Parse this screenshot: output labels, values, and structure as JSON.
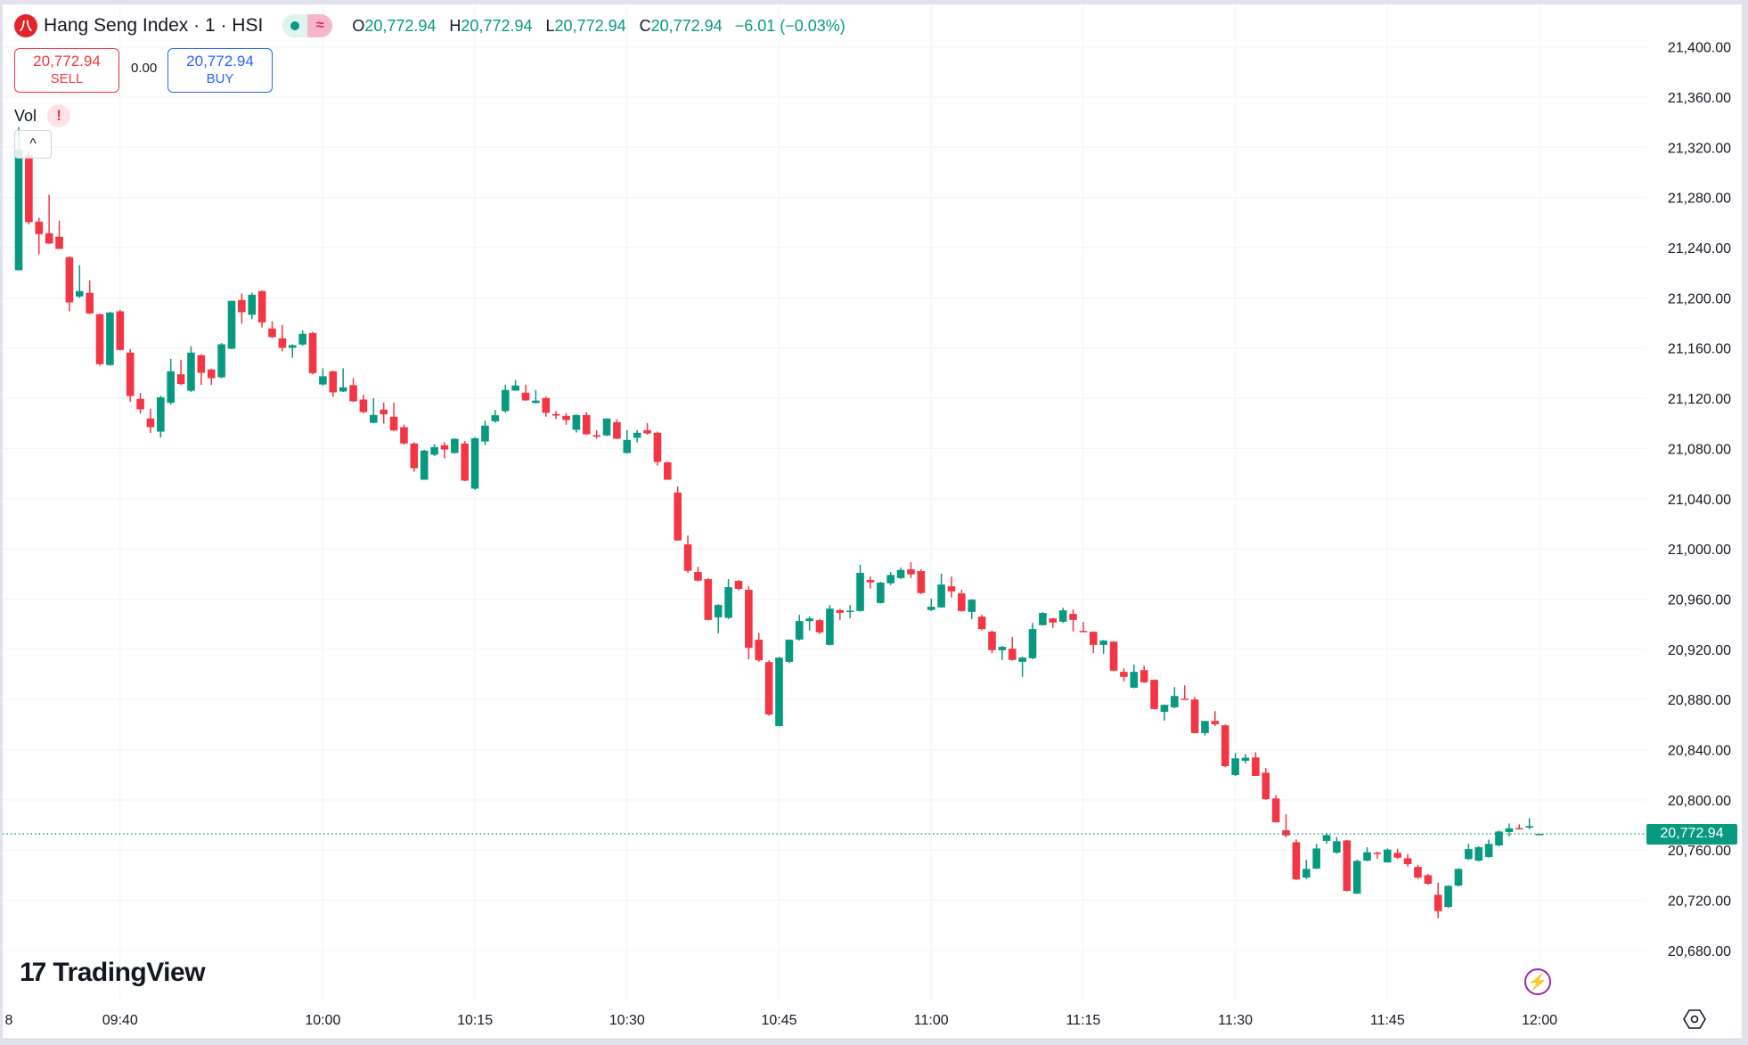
{
  "header": {
    "logo_text": "八",
    "title": "Hang Seng Index · 1 · HSI",
    "status_wave": "≈",
    "ohlc": {
      "o_label": "O",
      "o": "20,772.94",
      "h_label": "H",
      "h": "20,772.94",
      "l_label": "L",
      "l": "20,772.94",
      "c_label": "C",
      "c": "20,772.94",
      "change": "−6.01 (−0.03%)"
    }
  },
  "trade": {
    "sell_price": "20,772.94",
    "sell_label": "SELL",
    "spread": "0.00",
    "buy_price": "20,772.94",
    "buy_label": "BUY"
  },
  "indicator": {
    "name": "Vol",
    "warning": "!",
    "collapse": "^"
  },
  "branding": {
    "mark": "17",
    "name": "TradingView"
  },
  "icons": {
    "bolt": "⚡",
    "settings": "settings-hex-icon"
  },
  "colors": {
    "up": "#089981",
    "down": "#f23645",
    "buy": "#2962ff",
    "grid": "#f0f3fa"
  },
  "chart_data": {
    "type": "candlestick",
    "interval": "1 minute",
    "start_time": "09:30",
    "last_price": 20772.94,
    "last_price_label": "20,772.94",
    "ylim": [
      20660,
      21410
    ],
    "grid": true,
    "y_ticks": [
      "21,400.00",
      "21,360.00",
      "21,320.00",
      "21,280.00",
      "21,240.00",
      "21,200.00",
      "21,160.00",
      "21,120.00",
      "21,080.00",
      "21,040.00",
      "21,000.00",
      "20,960.00",
      "20,920.00",
      "20,880.00",
      "20,840.00",
      "20,800.00",
      "20,760.00",
      "20,720.00",
      "20,680.00"
    ],
    "x_ticks": [
      {
        "label": "8",
        "time": "09:29"
      },
      {
        "label": "09:40",
        "time": "09:40"
      },
      {
        "label": "10:00",
        "time": "10:00"
      },
      {
        "label": "10:15",
        "time": "10:15"
      },
      {
        "label": "10:30",
        "time": "10:30"
      },
      {
        "label": "10:45",
        "time": "10:45"
      },
      {
        "label": "11:00",
        "time": "11:00"
      },
      {
        "label": "11:15",
        "time": "11:15"
      },
      {
        "label": "11:30",
        "time": "11:30"
      },
      {
        "label": "11:45",
        "time": "11:45"
      },
      {
        "label": "12:00",
        "time": "12:00"
      }
    ],
    "ohlc_fields": [
      "open",
      "high",
      "low",
      "close"
    ],
    "candles": [
      [
        21222,
        21336,
        21222,
        21318.3
      ],
      [
        21314,
        21316.4,
        21258.6,
        21260.3
      ],
      [
        21260.8,
        21263.9,
        21234.7,
        21250.8
      ],
      [
        21251.5,
        21282.1,
        21243,
        21243.3
      ],
      [
        21248.7,
        21261.5,
        21239,
        21239
      ],
      [
        21232.4,
        21233,
        21189.3,
        21196.4
      ],
      [
        21201.1,
        21226,
        21200,
        21205.4
      ],
      [
        21204,
        21214,
        21187,
        21187.6
      ],
      [
        21187,
        21187.5,
        21146,
        21147.2
      ],
      [
        21146.5,
        21189,
        21146,
        21188.3
      ],
      [
        21189.3,
        21190.5,
        21158,
        21158.5
      ],
      [
        21156.4,
        21159.2,
        21117.1,
        21121.8
      ],
      [
        21119.5,
        21124.2,
        21107.6,
        21111.2
      ],
      [
        21103.9,
        21111.7,
        21092.3,
        21097
      ],
      [
        21093.4,
        21122,
        21088.7,
        21120.7
      ],
      [
        21116.4,
        21151.4,
        21115,
        21141.5
      ],
      [
        21139.1,
        21150.7,
        21130.6,
        21131.3
      ],
      [
        21126,
        21161.4,
        21125,
        21156.4
      ],
      [
        21154.3,
        21155,
        21130.6,
        21140.3
      ],
      [
        21142.9,
        21143.6,
        21130.6,
        21136
      ],
      [
        21136.7,
        21164,
        21136,
        21163
      ],
      [
        21159.5,
        21198,
        21159,
        21197.6
      ],
      [
        21198.3,
        21203.5,
        21179.4,
        21188.6
      ],
      [
        21186.5,
        21204,
        21183,
        21202.5
      ],
      [
        21205.4,
        21206,
        21176.3,
        21180.5
      ],
      [
        21175.6,
        21181.3,
        21168,
        21168.7
      ],
      [
        21167.8,
        21178.4,
        21157.4,
        21160.2
      ],
      [
        21160.2,
        21163,
        21152.2,
        21162.3
      ],
      [
        21162.8,
        21174.1,
        21162,
        21171.3
      ],
      [
        21172,
        21173,
        21139,
        21140
      ],
      [
        21131,
        21143.9,
        21130,
        21137.5
      ],
      [
        21141.5,
        21142,
        21121.1,
        21124.7
      ],
      [
        21125.4,
        21143.9,
        21125,
        21128.7
      ],
      [
        21130.4,
        21136,
        21117,
        21117.6
      ],
      [
        21119,
        21122.8,
        21108,
        21109
      ],
      [
        21100.5,
        21120,
        21100,
        21106.7
      ],
      [
        21111,
        21116.6,
        21099.8,
        21107.2
      ],
      [
        21105.3,
        21116.6,
        21094,
        21094.4
      ],
      [
        21097,
        21099,
        21083,
        21084
      ],
      [
        21084,
        21085,
        21061.5,
        21064.3
      ],
      [
        21055.1,
        21079,
        21055,
        21078.3
      ],
      [
        21075,
        21083.3,
        21074,
        21081.1
      ],
      [
        21082.6,
        21085,
        21072.1,
        21079.2
      ],
      [
        21076.4,
        21088.2,
        21076,
        21087.7
      ],
      [
        21084,
        21085.9,
        21054,
        21054.4
      ],
      [
        21048,
        21089,
        21047,
        21088.2
      ],
      [
        21085.6,
        21102.2,
        21082.8,
        21098.2
      ],
      [
        21101.7,
        21110.7,
        21100.5,
        21106.5
      ],
      [
        21109.8,
        21130.9,
        21108.4,
        21126.6
      ],
      [
        21126.1,
        21134.5,
        21126,
        21130.2
      ],
      [
        21124.5,
        21130.9,
        21118,
        21118.3
      ],
      [
        21116.2,
        21126.6,
        21116,
        21118.1
      ],
      [
        21120.2,
        21121.4,
        21105.3,
        21108.4
      ],
      [
        21107.4,
        21109.8,
        21103.4,
        21106.2
      ],
      [
        21106,
        21108.1,
        21098.9,
        21102.7
      ],
      [
        21094.9,
        21107,
        21092.7,
        21106.7
      ],
      [
        21106.7,
        21108.9,
        21091,
        21091.3
      ],
      [
        21090.6,
        21094.6,
        21087.8,
        21089.4
      ],
      [
        21090.4,
        21104,
        21089.9,
        21103.9
      ],
      [
        21101,
        21103.4,
        21087.5,
        21087.8
      ],
      [
        21076.4,
        21094.6,
        21076,
        21086.8
      ],
      [
        21088.5,
        21094.6,
        21084.9,
        21092.5
      ],
      [
        21094.6,
        21100.3,
        21091,
        21092
      ],
      [
        21092.5,
        21093.5,
        21066.4,
        21069.3
      ],
      [
        21069,
        21069.3,
        21055,
        21055.1
      ],
      [
        21044.9,
        21049.8,
        21006.5,
        21006.7
      ],
      [
        21003.6,
        21010.7,
        20981,
        20982.5
      ],
      [
        20981.6,
        20985.8,
        20974,
        20974.7
      ],
      [
        20975.9,
        20976.8,
        20943,
        20943.4
      ],
      [
        20945.5,
        20956,
        20932.8,
        20955.3
      ],
      [
        20945.1,
        20975.9,
        20944.1,
        20969.5
      ],
      [
        20974.5,
        20975.2,
        20967,
        20968.1
      ],
      [
        20967.4,
        20970.2,
        20912,
        20921.1
      ],
      [
        20927.6,
        20933,
        20910,
        20911.2
      ],
      [
        20909.8,
        20911.2,
        20867,
        20868
      ],
      [
        20858.8,
        20914,
        20858.5,
        20913.3
      ],
      [
        20910,
        20928,
        20909,
        20927.6
      ],
      [
        20927.8,
        20947.4,
        20927,
        20942.5
      ],
      [
        20942.5,
        20946,
        20934.9,
        20944.6
      ],
      [
        20943.2,
        20944.1,
        20932,
        20933.5
      ],
      [
        20923.5,
        20955.3,
        20923,
        20952.4
      ],
      [
        20951.2,
        20952,
        20943.4,
        20949.1
      ],
      [
        20950.5,
        20955.3,
        20944.8,
        20950.8
      ],
      [
        20950.5,
        20987.3,
        20950,
        20980.9
      ],
      [
        20975.2,
        20978,
        20968.3,
        20973.3
      ],
      [
        20956.9,
        20973.8,
        20956.5,
        20973.1
      ],
      [
        20972.6,
        20981.6,
        20971.2,
        20979.2
      ],
      [
        20976.8,
        20985.1,
        20976,
        20983.2
      ],
      [
        20983.7,
        20989.4,
        20976.8,
        20979.7
      ],
      [
        20982.3,
        20983.7,
        20964,
        20964.8
      ],
      [
        20951.3,
        20960.3,
        20950.5,
        20953.9
      ],
      [
        20953.4,
        20980.2,
        20953,
        20971.6
      ],
      [
        20970.2,
        20978,
        20961.2,
        20966.2
      ],
      [
        20964.5,
        20967.4,
        20950,
        20950.5
      ],
      [
        20949.8,
        20960,
        20944.1,
        20959.5
      ],
      [
        20946,
        20947.4,
        20935,
        20936.1
      ],
      [
        20934,
        20935,
        20916.9,
        20919.3
      ],
      [
        20919.3,
        20922.6,
        20911.5,
        20921.9
      ],
      [
        20920.5,
        20929.7,
        20911,
        20911.5
      ],
      [
        20910,
        20914,
        20898,
        20913.4
      ],
      [
        20912.9,
        20941,
        20912,
        20936.1
      ],
      [
        20939.2,
        20949.6,
        20939,
        20948.9
      ],
      [
        20944.6,
        20945,
        20937,
        20941.3
      ],
      [
        20942,
        20953.1,
        20941,
        20951
      ],
      [
        20948.2,
        20951.7,
        20934.2,
        20943.4
      ],
      [
        20934.7,
        20941.8,
        20934,
        20934.2
      ],
      [
        20934,
        20934.2,
        20916.9,
        20923.5
      ],
      [
        20923.5,
        20927.5,
        20916.4,
        20926.9
      ],
      [
        20926.1,
        20926.5,
        20902.5,
        20903
      ],
      [
        20902,
        20904.8,
        20894.4,
        20898
      ],
      [
        20889.4,
        20907.7,
        20889,
        20902
      ],
      [
        20903.4,
        20907,
        20893,
        20893.7
      ],
      [
        20895.6,
        20896,
        20872,
        20872.4
      ],
      [
        20870.2,
        20876,
        20863.2,
        20875.7
      ],
      [
        20873.8,
        20889.9,
        20873,
        20882.8
      ],
      [
        20880.7,
        20891.3,
        20880,
        20880.2
      ],
      [
        20880,
        20882.1,
        20853,
        20853.2
      ],
      [
        20853.2,
        20863,
        20851.3,
        20862.9
      ],
      [
        20862.9,
        20870.7,
        20858.9,
        20860.3
      ],
      [
        20859.4,
        20860,
        20826,
        20826.9
      ],
      [
        20819.8,
        20837.3,
        20819,
        20833.1
      ],
      [
        20831.2,
        20836.6,
        20829.1,
        20833.6
      ],
      [
        20833.8,
        20838,
        20819,
        20819.1
      ],
      [
        20821.7,
        20825.3,
        20800,
        20800.6
      ],
      [
        20801.1,
        20804,
        20782,
        20782.2
      ],
      [
        20775.8,
        20788.6,
        20770.1,
        20771.7
      ],
      [
        20766.3,
        20768.4,
        20736,
        20736.7
      ],
      [
        20738.1,
        20752.3,
        20737,
        20745
      ],
      [
        20745.2,
        20765,
        20745,
        20761.3
      ],
      [
        20767.3,
        20773.6,
        20765.1,
        20772
      ],
      [
        20758,
        20770.6,
        20757,
        20767
      ],
      [
        20767.7,
        20768,
        20727,
        20727.5
      ],
      [
        20725.3,
        20752.3,
        20725,
        20751.4
      ],
      [
        20751.6,
        20762.3,
        20751,
        20758.3
      ],
      [
        20758,
        20758.7,
        20753,
        20757.6
      ],
      [
        20750.2,
        20761.3,
        20750,
        20760.4
      ],
      [
        20757.8,
        20761.1,
        20753,
        20754
      ],
      [
        20753.5,
        20756.8,
        20746.9,
        20748.8
      ],
      [
        20746.6,
        20748.3,
        20737,
        20738.1
      ],
      [
        20740,
        20741,
        20732.4,
        20733.2
      ],
      [
        20724.4,
        20734.1,
        20705.7,
        20711.4
      ],
      [
        20714.7,
        20732,
        20714,
        20731.5
      ],
      [
        20731.7,
        20745.5,
        20731,
        20745
      ],
      [
        20752.9,
        20765.2,
        20752,
        20760.8
      ],
      [
        20751.6,
        20763,
        20751,
        20762.3
      ],
      [
        20754.5,
        20768.4,
        20754,
        20764.9
      ],
      [
        20763.7,
        20775.5,
        20763,
        20774.8
      ],
      [
        20774.4,
        20781.2,
        20770.8,
        20777.4
      ],
      [
        20777.6,
        20780.5,
        20776.5,
        20776.9
      ],
      [
        20777.9,
        20785.5,
        20776.5,
        20779.1
      ],
      [
        20772.94,
        20772.94,
        20772.94,
        20772.94
      ]
    ]
  }
}
